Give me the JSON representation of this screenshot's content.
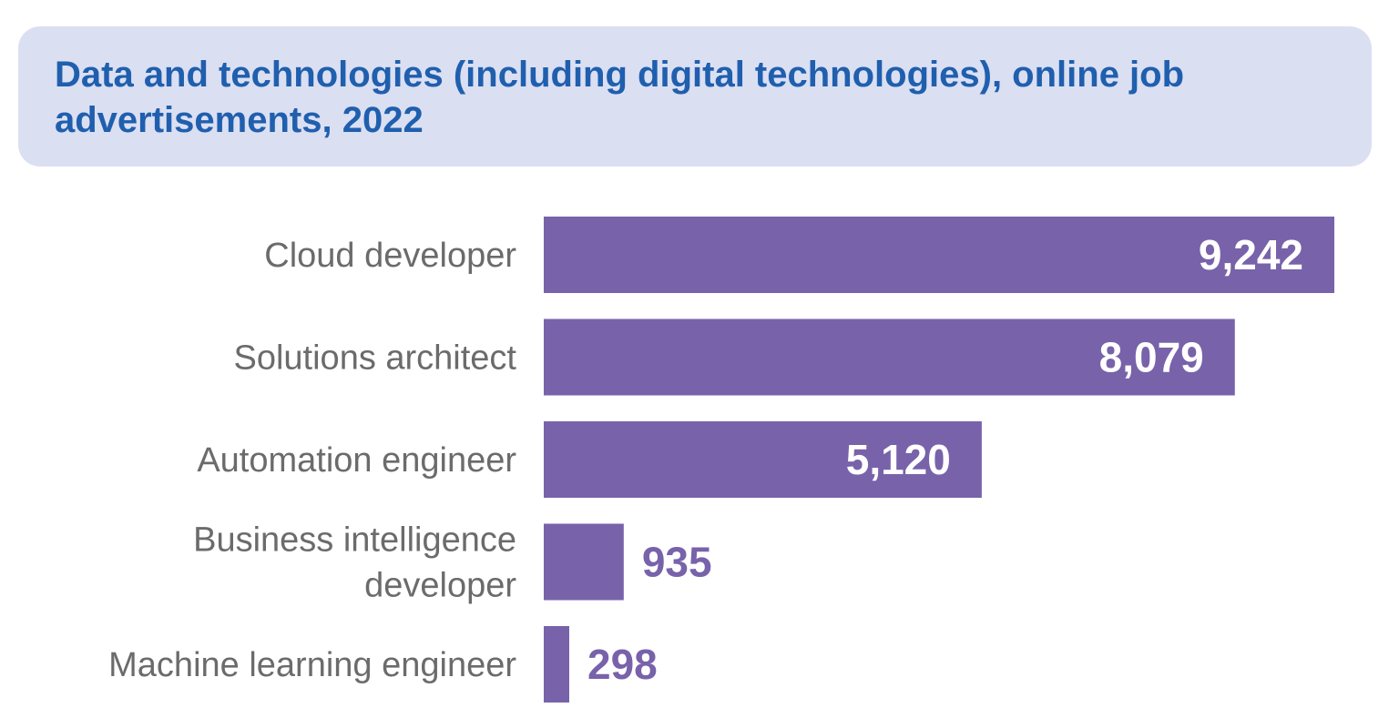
{
  "chart_data": {
    "type": "bar",
    "orientation": "horizontal",
    "title": "Data and technologies (including digital technologies), online job advertisements, 2022",
    "categories": [
      [
        "Cloud developer"
      ],
      [
        "Solutions architect"
      ],
      [
        "Automation engineer"
      ],
      [
        "Business intelligence",
        "developer"
      ],
      [
        "Machine learning engineer"
      ]
    ],
    "values": [
      9242,
      8079,
      5120,
      935,
      298
    ],
    "value_labels": [
      "9,242",
      "8,079",
      "5,120",
      "935",
      "298"
    ],
    "xlim": [
      0,
      9242
    ],
    "xlabel": "",
    "ylabel": "",
    "grid": false,
    "legend": "none"
  },
  "colors": {
    "bar": "#7862aa",
    "title": "#1f5fae",
    "title_bg": "#dbdff2",
    "category_text": "#6b6b6b",
    "value_inside": "#ffffff",
    "value_outside": "#7862aa"
  }
}
